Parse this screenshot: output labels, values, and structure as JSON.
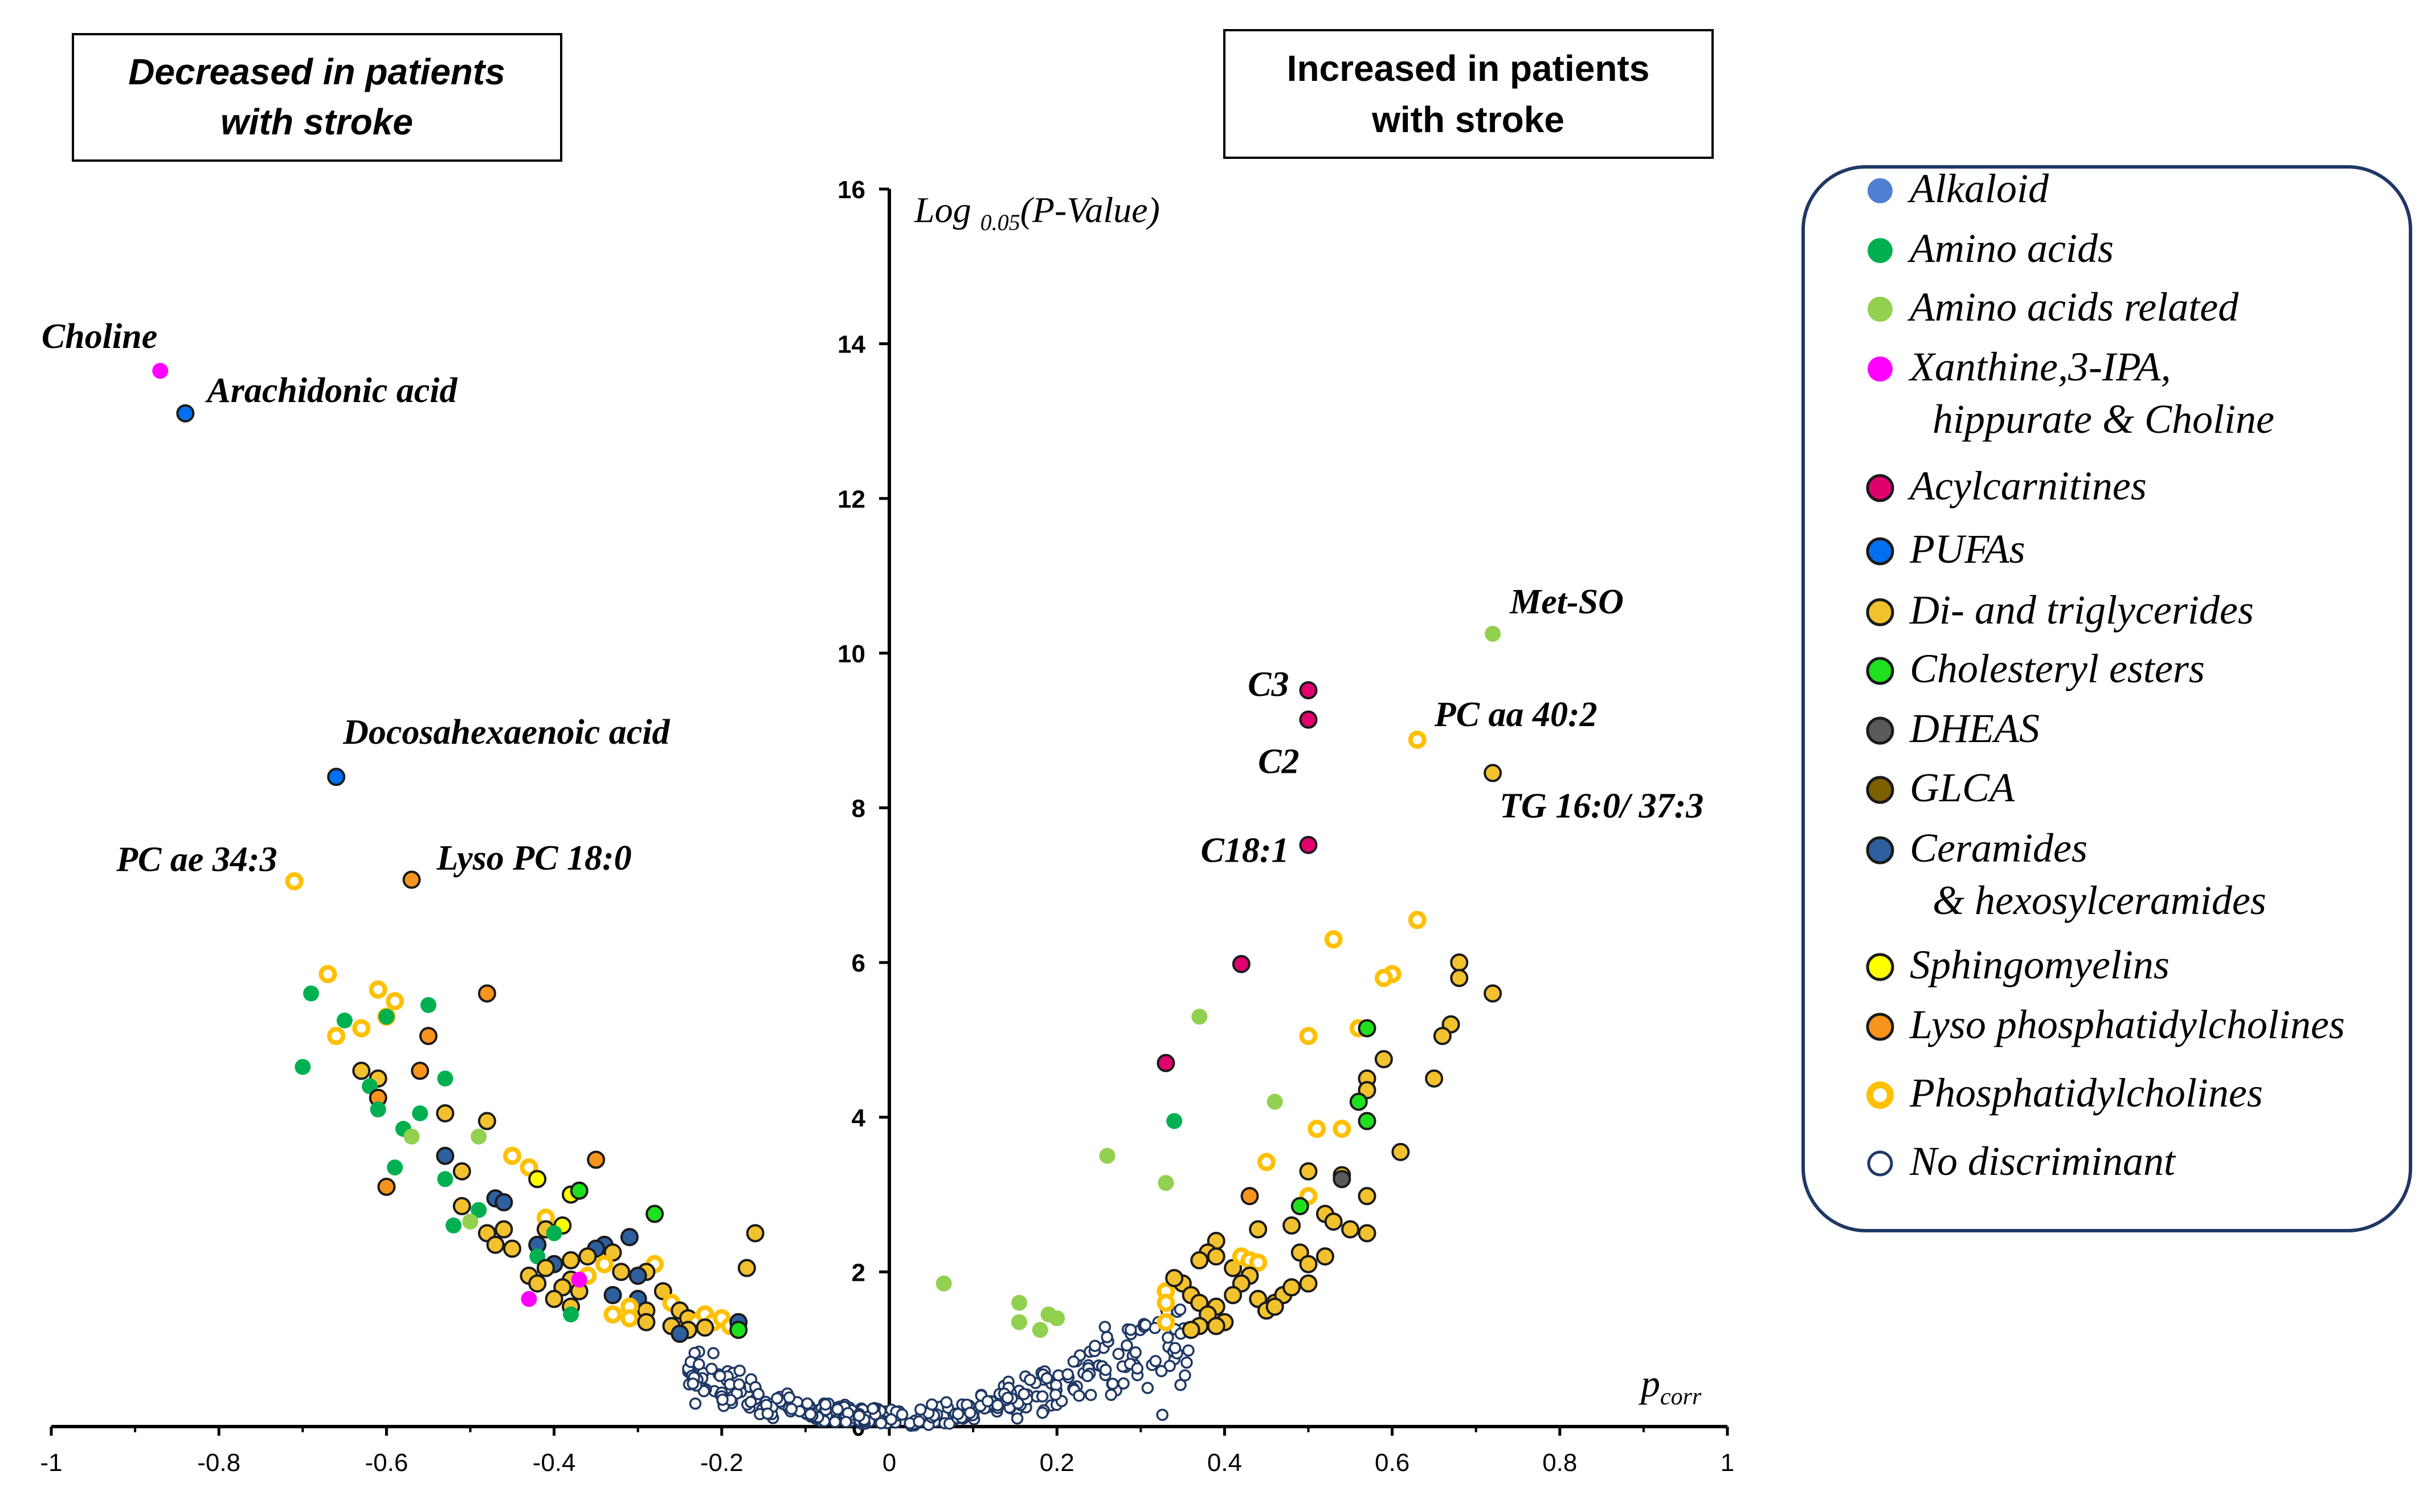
{
  "chart_data": {
    "type": "scatter",
    "title": "",
    "xlabel": "p_corr",
    "xlabel_main": "p",
    "xlabel_sub": "corr",
    "ylabel": "Log 0.05(P-Value)",
    "ylabel_main": "Log ",
    "ylabel_sub": "0.05",
    "ylabel_tail": "(P-Value)",
    "xlim": [
      -1,
      1
    ],
    "ylim": [
      0,
      16
    ],
    "xticks": [
      "-1",
      "-0.8",
      "-0.6",
      "-0.4",
      "-0.2",
      "0",
      "0.2",
      "0.4",
      "0.6",
      "0.8",
      "1"
    ],
    "yticks": [
      "16",
      "14",
      "12",
      "10",
      "8",
      "6",
      "4",
      "2",
      "0"
    ],
    "box_left": [
      "Decreased in patients",
      "with stroke"
    ],
    "box_right": [
      "Increased in patients",
      "with stroke"
    ],
    "categories": {
      "alkaloid": {
        "label": "Alkaloid",
        "color": "#4f7fd1"
      },
      "amino": {
        "label": "Amino acids",
        "color": "#00b050"
      },
      "amino_rel": {
        "label": "Amino acids related",
        "color": "#92d050"
      },
      "xanthine": {
        "label": "Xanthine,3-IPA,",
        "label2": "hippurate & Choline",
        "color": "#ff00ff"
      },
      "acyl": {
        "label": "Acylcarnitines",
        "color": "#e0006e"
      },
      "pufa": {
        "label": "PUFAs",
        "color": "#0070f0"
      },
      "tg": {
        "label": "Di- and triglycerides",
        "color": "#f2c12e"
      },
      "chol": {
        "label": "Cholesteryl esters",
        "color": "#1fe01f"
      },
      "dheas": {
        "label": "DHEAS",
        "color": "#5a5a5a"
      },
      "glca": {
        "label": "GLCA",
        "color": "#7f6000"
      },
      "cer": {
        "label": "Ceramides",
        "label2": "& hexosylceramides",
        "color": "#2e5f9e"
      },
      "sm": {
        "label": "Sphingomyelins",
        "color": "#ffff00"
      },
      "lpc": {
        "label": "Lyso phosphatidylcholines",
        "color": "#f7941d"
      },
      "pc": {
        "label": "Phosphatidylcholines",
        "color": "#ffc000"
      },
      "nd": {
        "label": "No discriminant",
        "color": "#1f3864"
      }
    },
    "legend_order": [
      "alkaloid",
      "amino",
      "amino_rel",
      "xanthine",
      "acyl",
      "pufa",
      "tg",
      "chol",
      "dheas",
      "glca",
      "cer",
      "sm",
      "lpc",
      "pc",
      "nd"
    ],
    "labeled_points": [
      {
        "label": "Choline",
        "x": -0.87,
        "y": 13.65,
        "cat": "xanthine"
      },
      {
        "label": "Arachidonic acid",
        "x": -0.84,
        "y": 13.1,
        "cat": "pufa"
      },
      {
        "label": "Docosahexaenoic acid",
        "x": -0.66,
        "y": 8.4,
        "cat": "pufa"
      },
      {
        "label": "PC ae 34:3",
        "x": -0.71,
        "y": 7.05,
        "cat": "pc"
      },
      {
        "label": "Lyso PC 18:0",
        "x": -0.57,
        "y": 7.07,
        "cat": "lpc"
      },
      {
        "label": "Met-SO",
        "x": 0.72,
        "y": 10.25,
        "cat": "amino_rel"
      },
      {
        "label": "C3",
        "x": 0.5,
        "y": 9.52,
        "cat": "acyl"
      },
      {
        "label": "C2",
        "x": 0.5,
        "y": 9.14,
        "cat": "acyl"
      },
      {
        "label": "PC aa 40:2",
        "x": 0.63,
        "y": 8.88,
        "cat": "pc"
      },
      {
        "label": "TG 16:0/ 37:3",
        "x": 0.72,
        "y": 8.45,
        "cat": "tg"
      },
      {
        "label": "C18:1",
        "x": 0.5,
        "y": 7.52,
        "cat": "acyl"
      }
    ],
    "points": [
      {
        "x": -0.67,
        "y": 5.85,
        "cat": "pc"
      },
      {
        "x": -0.69,
        "y": 5.6,
        "cat": "amino"
      },
      {
        "x": -0.66,
        "y": 5.05,
        "cat": "pc"
      },
      {
        "x": -0.65,
        "y": 5.25,
        "cat": "amino"
      },
      {
        "x": -0.63,
        "y": 5.15,
        "cat": "pc"
      },
      {
        "x": -0.61,
        "y": 5.65,
        "cat": "pc"
      },
      {
        "x": -0.6,
        "y": 5.3,
        "cat": "pc"
      },
      {
        "x": -0.59,
        "y": 5.5,
        "cat": "pc"
      },
      {
        "x": -0.6,
        "y": 5.3,
        "cat": "amino"
      },
      {
        "x": -0.7,
        "y": 4.65,
        "cat": "amino"
      },
      {
        "x": -0.63,
        "y": 4.6,
        "cat": "tg"
      },
      {
        "x": -0.61,
        "y": 4.5,
        "cat": "tg"
      },
      {
        "x": -0.62,
        "y": 4.4,
        "cat": "amino"
      },
      {
        "x": -0.61,
        "y": 4.25,
        "cat": "lpc"
      },
      {
        "x": -0.61,
        "y": 4.1,
        "cat": "amino"
      },
      {
        "x": -0.55,
        "y": 5.45,
        "cat": "amino"
      },
      {
        "x": -0.55,
        "y": 5.05,
        "cat": "lpc"
      },
      {
        "x": -0.56,
        "y": 4.6,
        "cat": "lpc"
      },
      {
        "x": -0.53,
        "y": 4.5,
        "cat": "amino"
      },
      {
        "x": -0.48,
        "y": 5.6,
        "cat": "lpc"
      },
      {
        "x": -0.56,
        "y": 4.05,
        "cat": "amino"
      },
      {
        "x": -0.53,
        "y": 4.05,
        "cat": "tg"
      },
      {
        "x": -0.58,
        "y": 3.85,
        "cat": "amino"
      },
      {
        "x": -0.57,
        "y": 3.75,
        "cat": "amino_rel"
      },
      {
        "x": -0.48,
        "y": 3.95,
        "cat": "tg"
      },
      {
        "x": -0.49,
        "y": 3.75,
        "cat": "amino_rel"
      },
      {
        "x": -0.59,
        "y": 3.35,
        "cat": "amino"
      },
      {
        "x": -0.6,
        "y": 3.1,
        "cat": "lpc"
      },
      {
        "x": -0.53,
        "y": 3.5,
        "cat": "cer"
      },
      {
        "x": -0.51,
        "y": 3.3,
        "cat": "tg"
      },
      {
        "x": -0.53,
        "y": 3.2,
        "cat": "amino"
      },
      {
        "x": -0.45,
        "y": 3.5,
        "cat": "pc"
      },
      {
        "x": -0.43,
        "y": 3.35,
        "cat": "pc"
      },
      {
        "x": -0.42,
        "y": 3.2,
        "cat": "sm"
      },
      {
        "x": -0.35,
        "y": 3.45,
        "cat": "lpc"
      },
      {
        "x": -0.38,
        "y": 3.0,
        "cat": "sm"
      },
      {
        "x": -0.37,
        "y": 3.05,
        "cat": "chol"
      },
      {
        "x": -0.47,
        "y": 2.95,
        "cat": "cer"
      },
      {
        "x": -0.46,
        "y": 2.9,
        "cat": "cer"
      },
      {
        "x": -0.49,
        "y": 2.8,
        "cat": "amino"
      },
      {
        "x": -0.51,
        "y": 2.85,
        "cat": "tg"
      },
      {
        "x": -0.52,
        "y": 2.6,
        "cat": "amino"
      },
      {
        "x": -0.5,
        "y": 2.65,
        "cat": "amino_rel"
      },
      {
        "x": -0.48,
        "y": 2.5,
        "cat": "tg"
      },
      {
        "x": -0.46,
        "y": 2.55,
        "cat": "tg"
      },
      {
        "x": -0.41,
        "y": 2.7,
        "cat": "pc"
      },
      {
        "x": -0.41,
        "y": 2.55,
        "cat": "tg"
      },
      {
        "x": -0.39,
        "y": 2.6,
        "cat": "sm"
      },
      {
        "x": -0.4,
        "y": 2.5,
        "cat": "amino"
      },
      {
        "x": -0.42,
        "y": 2.35,
        "cat": "cer"
      },
      {
        "x": -0.45,
        "y": 2.3,
        "cat": "tg"
      },
      {
        "x": -0.47,
        "y": 2.35,
        "cat": "tg"
      },
      {
        "x": -0.28,
        "y": 2.75,
        "cat": "chol"
      },
      {
        "x": -0.31,
        "y": 2.45,
        "cat": "cer"
      },
      {
        "x": -0.34,
        "y": 2.35,
        "cat": "cer"
      },
      {
        "x": -0.35,
        "y": 2.3,
        "cat": "cer"
      },
      {
        "x": -0.33,
        "y": 2.25,
        "cat": "tg"
      },
      {
        "x": -0.36,
        "y": 2.2,
        "cat": "tg"
      },
      {
        "x": -0.38,
        "y": 2.15,
        "cat": "tg"
      },
      {
        "x": -0.4,
        "y": 2.1,
        "cat": "cer"
      },
      {
        "x": -0.42,
        "y": 2.2,
        "cat": "amino"
      },
      {
        "x": -0.41,
        "y": 2.05,
        "cat": "tg"
      },
      {
        "x": -0.16,
        "y": 2.5,
        "cat": "tg"
      },
      {
        "x": -0.17,
        "y": 2.05,
        "cat": "tg"
      },
      {
        "x": -0.28,
        "y": 2.1,
        "cat": "pc"
      },
      {
        "x": -0.29,
        "y": 2.0,
        "cat": "tg"
      },
      {
        "x": -0.3,
        "y": 1.95,
        "cat": "cer"
      },
      {
        "x": -0.32,
        "y": 2.0,
        "cat": "tg"
      },
      {
        "x": -0.34,
        "y": 2.1,
        "cat": "pc"
      },
      {
        "x": -0.36,
        "y": 1.95,
        "cat": "pc"
      },
      {
        "x": -0.38,
        "y": 1.9,
        "cat": "tg"
      },
      {
        "x": -0.43,
        "y": 1.95,
        "cat": "tg"
      },
      {
        "x": -0.42,
        "y": 1.85,
        "cat": "tg"
      },
      {
        "x": -0.39,
        "y": 1.8,
        "cat": "tg"
      },
      {
        "x": -0.37,
        "y": 1.75,
        "cat": "tg"
      },
      {
        "x": -0.33,
        "y": 1.7,
        "cat": "cer"
      },
      {
        "x": -0.3,
        "y": 1.65,
        "cat": "cer"
      },
      {
        "x": -0.27,
        "y": 1.75,
        "cat": "tg"
      },
      {
        "x": -0.26,
        "y": 1.6,
        "cat": "pc"
      },
      {
        "x": -0.29,
        "y": 1.5,
        "cat": "tg"
      },
      {
        "x": -0.31,
        "y": 1.55,
        "cat": "pc"
      },
      {
        "x": -0.33,
        "y": 1.45,
        "cat": "pc"
      },
      {
        "x": -0.4,
        "y": 1.65,
        "cat": "tg"
      },
      {
        "x": -0.38,
        "y": 1.55,
        "cat": "tg"
      },
      {
        "x": -0.43,
        "y": 1.65,
        "cat": "xanthine"
      },
      {
        "x": -0.38,
        "y": 1.45,
        "cat": "amino"
      },
      {
        "x": -0.37,
        "y": 1.9,
        "cat": "xanthine"
      },
      {
        "x": -0.25,
        "y": 1.5,
        "cat": "tg"
      },
      {
        "x": -0.24,
        "y": 1.4,
        "cat": "tg"
      },
      {
        "x": -0.23,
        "y": 1.35,
        "cat": "pc"
      },
      {
        "x": -0.22,
        "y": 1.45,
        "cat": "pc"
      },
      {
        "x": -0.21,
        "y": 1.35,
        "cat": "pc"
      },
      {
        "x": -0.2,
        "y": 1.4,
        "cat": "pc"
      },
      {
        "x": -0.19,
        "y": 1.3,
        "cat": "pc"
      },
      {
        "x": -0.18,
        "y": 1.35,
        "cat": "cer"
      },
      {
        "x": -0.26,
        "y": 1.3,
        "cat": "tg"
      },
      {
        "x": -0.24,
        "y": 1.25,
        "cat": "tg"
      },
      {
        "x": -0.22,
        "y": 1.28,
        "cat": "tg"
      },
      {
        "x": -0.18,
        "y": 1.25,
        "cat": "chol"
      },
      {
        "x": -0.25,
        "y": 1.2,
        "cat": "cer"
      },
      {
        "x": -0.31,
        "y": 1.4,
        "cat": "pc"
      },
      {
        "x": -0.29,
        "y": 1.35,
        "cat": "tg"
      },
      {
        "x": 0.72,
        "y": 5.6,
        "cat": "tg"
      },
      {
        "x": 0.68,
        "y": 6.0,
        "cat": "tg"
      },
      {
        "x": 0.68,
        "y": 5.8,
        "cat": "tg"
      },
      {
        "x": 0.63,
        "y": 6.55,
        "cat": "pc"
      },
      {
        "x": 0.53,
        "y": 6.3,
        "cat": "pc"
      },
      {
        "x": 0.6,
        "y": 5.85,
        "cat": "pc"
      },
      {
        "x": 0.59,
        "y": 5.8,
        "cat": "pc"
      },
      {
        "x": 0.67,
        "y": 5.2,
        "cat": "tg"
      },
      {
        "x": 0.66,
        "y": 5.05,
        "cat": "tg"
      },
      {
        "x": 0.5,
        "y": 5.05,
        "cat": "pc"
      },
      {
        "x": 0.56,
        "y": 5.15,
        "cat": "pc"
      },
      {
        "x": 0.57,
        "y": 5.15,
        "cat": "chol"
      },
      {
        "x": 0.42,
        "y": 5.98,
        "cat": "acyl"
      },
      {
        "x": 0.37,
        "y": 5.3,
        "cat": "amino_rel"
      },
      {
        "x": 0.33,
        "y": 4.7,
        "cat": "acyl"
      },
      {
        "x": 0.34,
        "y": 3.95,
        "cat": "amino"
      },
      {
        "x": 0.46,
        "y": 4.2,
        "cat": "amino_rel"
      },
      {
        "x": 0.59,
        "y": 4.75,
        "cat": "tg"
      },
      {
        "x": 0.57,
        "y": 4.5,
        "cat": "tg"
      },
      {
        "x": 0.65,
        "y": 4.5,
        "cat": "tg"
      },
      {
        "x": 0.57,
        "y": 4.35,
        "cat": "tg"
      },
      {
        "x": 0.56,
        "y": 4.2,
        "cat": "chol"
      },
      {
        "x": 0.57,
        "y": 3.95,
        "cat": "chol"
      },
      {
        "x": 0.51,
        "y": 3.85,
        "cat": "pc"
      },
      {
        "x": 0.54,
        "y": 3.85,
        "cat": "pc"
      },
      {
        "x": 0.61,
        "y": 3.55,
        "cat": "tg"
      },
      {
        "x": 0.45,
        "y": 3.42,
        "cat": "pc"
      },
      {
        "x": 0.5,
        "y": 3.3,
        "cat": "tg"
      },
      {
        "x": 0.54,
        "y": 3.25,
        "cat": "tg"
      },
      {
        "x": 0.54,
        "y": 3.2,
        "cat": "dheas"
      },
      {
        "x": 0.26,
        "y": 3.5,
        "cat": "amino_rel"
      },
      {
        "x": 0.33,
        "y": 3.15,
        "cat": "amino_rel"
      },
      {
        "x": 0.43,
        "y": 2.98,
        "cat": "lpc"
      },
      {
        "x": 0.5,
        "y": 2.98,
        "cat": "pc"
      },
      {
        "x": 0.49,
        "y": 2.85,
        "cat": "chol"
      },
      {
        "x": 0.57,
        "y": 2.98,
        "cat": "tg"
      },
      {
        "x": 0.52,
        "y": 2.75,
        "cat": "tg"
      },
      {
        "x": 0.53,
        "y": 2.65,
        "cat": "tg"
      },
      {
        "x": 0.55,
        "y": 2.55,
        "cat": "tg"
      },
      {
        "x": 0.57,
        "y": 2.5,
        "cat": "tg"
      },
      {
        "x": 0.44,
        "y": 2.55,
        "cat": "tg"
      },
      {
        "x": 0.48,
        "y": 2.6,
        "cat": "tg"
      },
      {
        "x": 0.39,
        "y": 2.4,
        "cat": "tg"
      },
      {
        "x": 0.38,
        "y": 2.25,
        "cat": "tg"
      },
      {
        "x": 0.37,
        "y": 2.15,
        "cat": "tg"
      },
      {
        "x": 0.39,
        "y": 2.2,
        "cat": "tg"
      },
      {
        "x": 0.41,
        "y": 2.05,
        "cat": "tg"
      },
      {
        "x": 0.42,
        "y": 2.2,
        "cat": "pc"
      },
      {
        "x": 0.43,
        "y": 2.15,
        "cat": "pc"
      },
      {
        "x": 0.44,
        "y": 2.12,
        "cat": "pc"
      },
      {
        "x": 0.43,
        "y": 1.95,
        "cat": "tg"
      },
      {
        "x": 0.42,
        "y": 1.85,
        "cat": "tg"
      },
      {
        "x": 0.49,
        "y": 2.25,
        "cat": "tg"
      },
      {
        "x": 0.5,
        "y": 2.1,
        "cat": "tg"
      },
      {
        "x": 0.52,
        "y": 2.2,
        "cat": "tg"
      },
      {
        "x": 0.35,
        "y": 1.85,
        "cat": "tg"
      },
      {
        "x": 0.33,
        "y": 1.75,
        "cat": "pc"
      },
      {
        "x": 0.33,
        "y": 1.6,
        "cat": "pc"
      },
      {
        "x": 0.36,
        "y": 1.7,
        "cat": "tg"
      },
      {
        "x": 0.37,
        "y": 1.6,
        "cat": "tg"
      },
      {
        "x": 0.39,
        "y": 1.55,
        "cat": "tg"
      },
      {
        "x": 0.41,
        "y": 1.7,
        "cat": "tg"
      },
      {
        "x": 0.44,
        "y": 1.65,
        "cat": "tg"
      },
      {
        "x": 0.46,
        "y": 1.6,
        "cat": "tg"
      },
      {
        "x": 0.47,
        "y": 1.7,
        "cat": "tg"
      },
      {
        "x": 0.48,
        "y": 1.8,
        "cat": "tg"
      },
      {
        "x": 0.5,
        "y": 1.85,
        "cat": "tg"
      },
      {
        "x": 0.38,
        "y": 1.45,
        "cat": "tg"
      },
      {
        "x": 0.4,
        "y": 1.35,
        "cat": "tg"
      },
      {
        "x": 0.45,
        "y": 1.5,
        "cat": "tg"
      },
      {
        "x": 0.46,
        "y": 1.55,
        "cat": "tg"
      },
      {
        "x": 0.37,
        "y": 1.3,
        "cat": "tg"
      },
      {
        "x": 0.36,
        "y": 1.25,
        "cat": "tg"
      },
      {
        "x": 0.39,
        "y": 1.3,
        "cat": "tg"
      },
      {
        "x": 0.33,
        "y": 1.35,
        "cat": "pc"
      },
      {
        "x": 0.34,
        "y": 1.92,
        "cat": "tg"
      },
      {
        "x": 0.065,
        "y": 1.85,
        "cat": "amino_rel"
      },
      {
        "x": 0.155,
        "y": 1.6,
        "cat": "amino_rel"
      },
      {
        "x": 0.155,
        "y": 1.35,
        "cat": "amino_rel"
      },
      {
        "x": 0.18,
        "y": 1.25,
        "cat": "amino_rel"
      },
      {
        "x": 0.19,
        "y": 1.45,
        "cat": "amino_rel"
      },
      {
        "x": 0.2,
        "y": 1.4,
        "cat": "amino_rel"
      }
    ]
  }
}
